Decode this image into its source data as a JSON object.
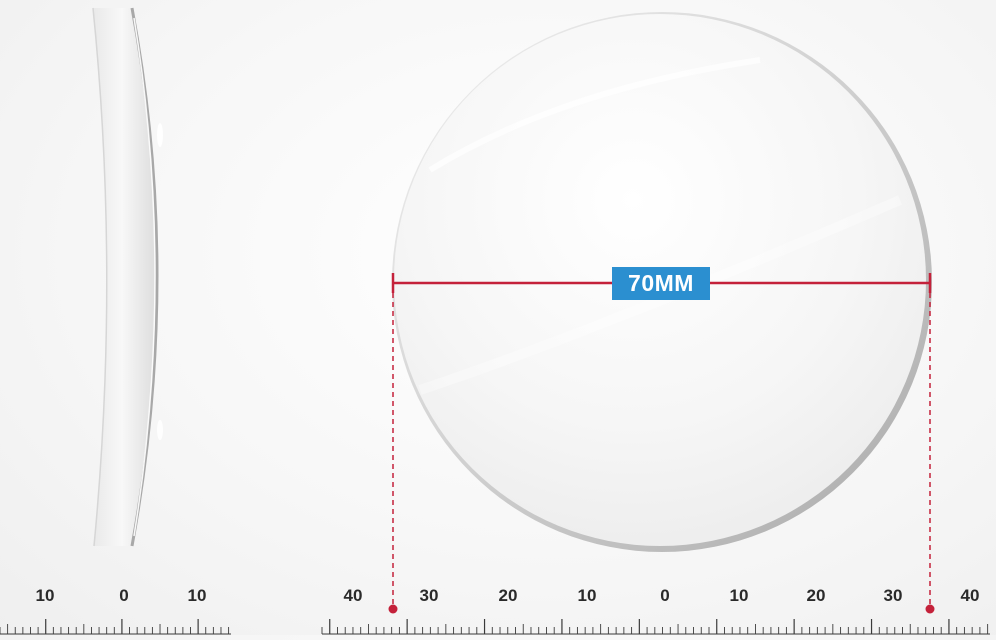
{
  "measurement": {
    "label": "70MM",
    "line_color": "#c4213a",
    "badge_color": "#2b8fd0"
  },
  "left_ruler": {
    "labels": [
      "10",
      "0",
      "10"
    ]
  },
  "main_ruler": {
    "labels": [
      "40",
      "30",
      "20",
      "10",
      "0",
      "10",
      "20",
      "30",
      "40"
    ]
  }
}
